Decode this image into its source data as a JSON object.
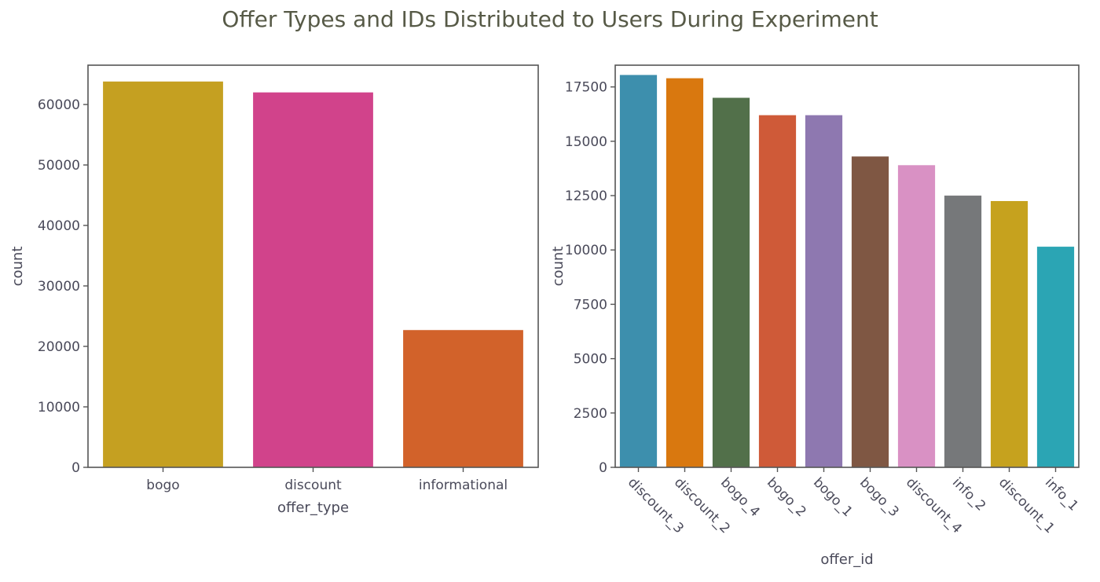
{
  "figure_title": "Offer Types and IDs Distributed to Users During Experiment",
  "chart_data": [
    {
      "type": "bar",
      "title": "",
      "xlabel": "offer_type",
      "ylabel": "count",
      "ylim": [
        0,
        66500
      ],
      "yticks": [
        0,
        10000,
        20000,
        30000,
        40000,
        50000,
        60000
      ],
      "ytick_labels": [
        "0",
        "10000",
        "20000",
        "30000",
        "40000",
        "50000",
        "60000"
      ],
      "grid": false,
      "categories": [
        "bogo",
        "discount",
        "informational"
      ],
      "values": [
        63800,
        62000,
        22700
      ],
      "colors": [
        "#c5a021",
        "#d1438b",
        "#d2622a"
      ]
    },
    {
      "type": "bar",
      "title": "",
      "xlabel": "offer_id",
      "ylabel": "count",
      "ylim": [
        0,
        18500
      ],
      "yticks": [
        0,
        2500,
        5000,
        7500,
        10000,
        12500,
        15000,
        17500
      ],
      "ytick_labels": [
        "0",
        "2500",
        "5000",
        "7500",
        "10000",
        "12500",
        "15000",
        "17500"
      ],
      "grid": false,
      "categories": [
        "discount_3",
        "discount_2",
        "bogo_4",
        "bogo_2",
        "bogo_1",
        "bogo_3",
        "discount_4",
        "info_2",
        "discount_1",
        "info_1"
      ],
      "values": [
        18050,
        17900,
        17000,
        16200,
        16200,
        14300,
        13900,
        12500,
        12250,
        10150
      ],
      "colors": [
        "#3d8fad",
        "#d9780f",
        "#52704a",
        "#cf5a38",
        "#8e78b0",
        "#7f5743",
        "#d991c4",
        "#76787a",
        "#c6a21e",
        "#2ba5b4"
      ]
    }
  ]
}
